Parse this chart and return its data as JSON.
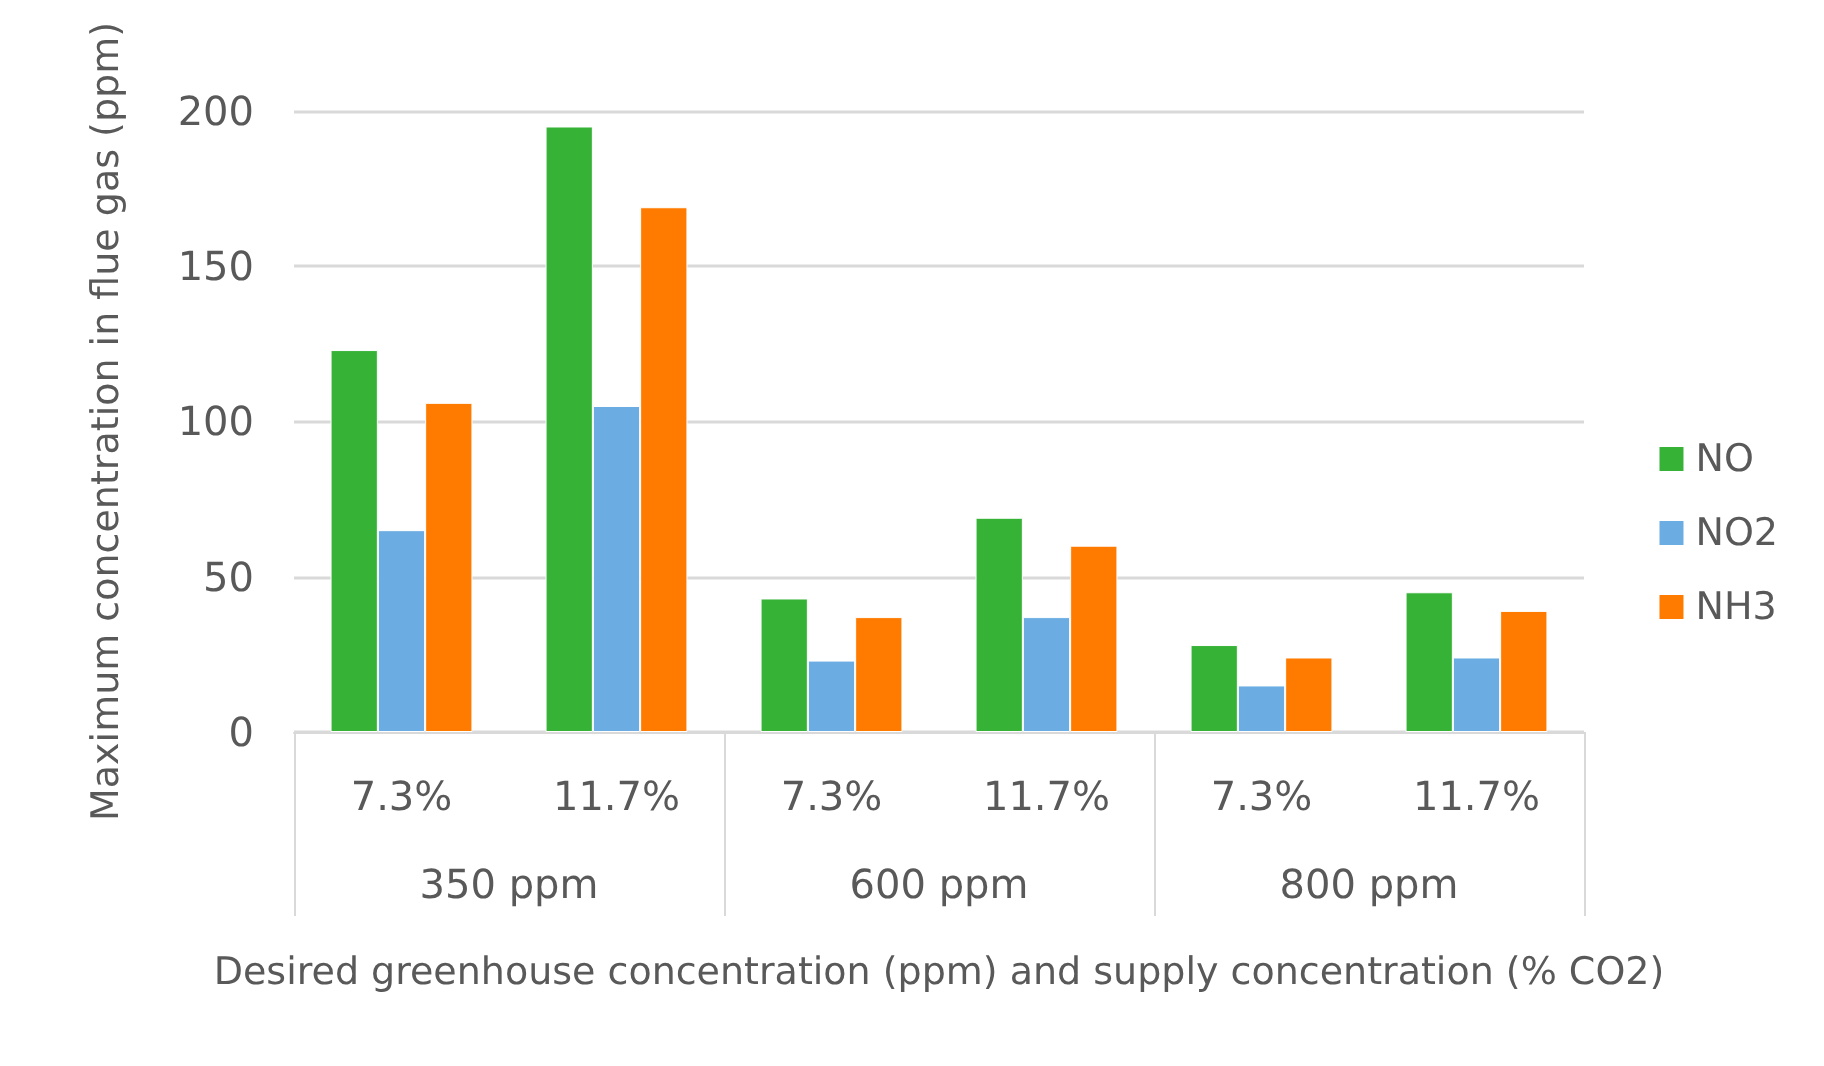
{
  "chart_data": {
    "type": "bar",
    "categories": [
      "7.3%",
      "11.7%",
      "7.3%",
      "11.7%",
      "7.3%",
      "11.7%"
    ],
    "annotations": [
      "350 ppm",
      "600 ppm",
      "800 ppm"
    ],
    "series": [
      {
        "name": "NO",
        "color": "#36b236",
        "values": [
          123,
          195,
          43,
          69,
          28,
          45
        ]
      },
      {
        "name": "NO2",
        "color": "#6badE2",
        "values": [
          65,
          105,
          23,
          37,
          15,
          24
        ]
      },
      {
        "name": "NH3",
        "color": "#ff7b00",
        "values": [
          106,
          169,
          37,
          60,
          24,
          39
        ]
      }
    ],
    "xlabel": "Desired greenhouse concentration (ppm) and supply concentration (% CO2)",
    "ylabel": "Maximum concentration in flue gas (ppm)",
    "ylim": [
      0,
      200
    ],
    "yticks": [
      0,
      50,
      100,
      150,
      200
    ],
    "grid": "y",
    "legend": "right"
  }
}
